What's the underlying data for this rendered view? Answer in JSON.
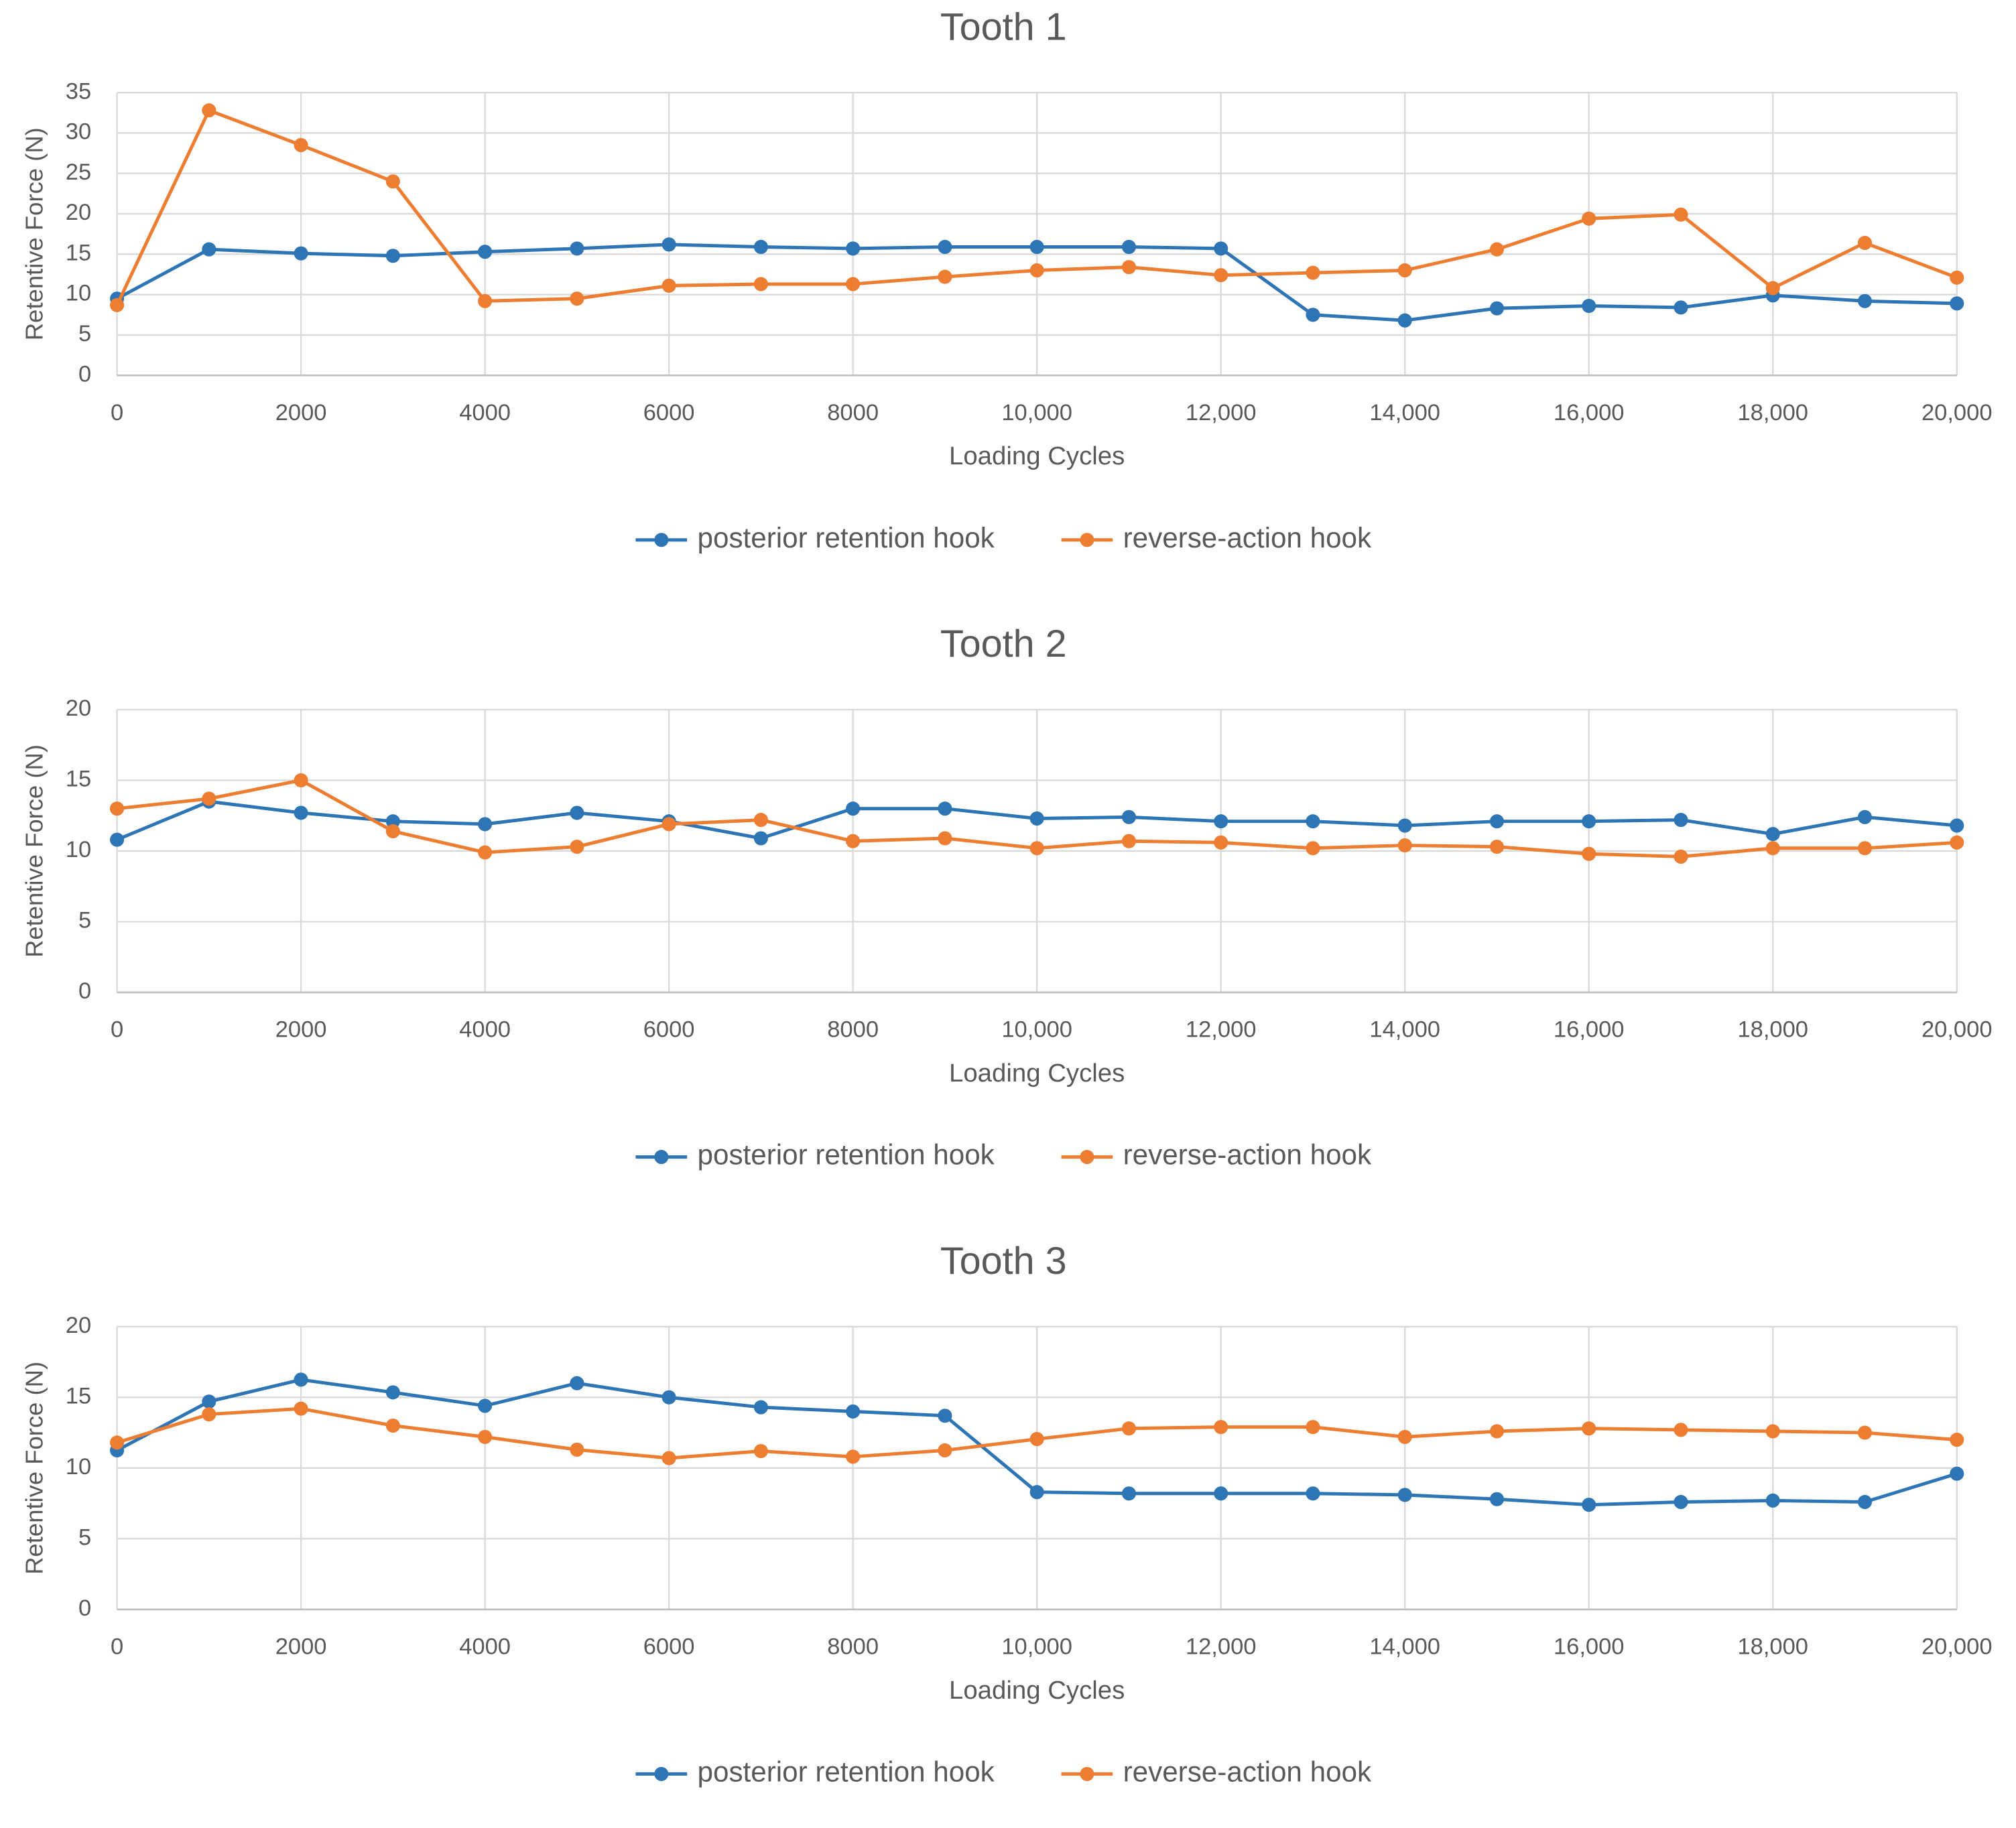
{
  "chart_data": [
    {
      "type": "line",
      "title": "Tooth 1",
      "x_label": "Loading Cycles",
      "y_label": "Retentive Force (N)",
      "x": [
        0,
        1000,
        2000,
        3000,
        4000,
        5000,
        6000,
        7000,
        8000,
        9000,
        10000,
        11000,
        12000,
        13000,
        14000,
        15000,
        16000,
        17000,
        18000,
        19000,
        20000
      ],
      "series": [
        {
          "name": "posterior retention hook",
          "color": "#2e75b6",
          "values": [
            9.5,
            15.6,
            15.1,
            14.8,
            15.3,
            15.7,
            16.2,
            15.9,
            15.7,
            15.9,
            15.9,
            15.9,
            15.7,
            7.5,
            6.8,
            8.3,
            8.6,
            8.4,
            9.9,
            9.2,
            8.9
          ]
        },
        {
          "name": "reverse-action hook",
          "color": "#ed7d31",
          "values": [
            8.7,
            32.8,
            28.5,
            24.0,
            9.2,
            9.5,
            11.1,
            11.3,
            11.3,
            12.2,
            13.0,
            13.4,
            12.4,
            12.7,
            13.0,
            15.6,
            19.4,
            19.9,
            10.8,
            16.4,
            12.1
          ]
        }
      ],
      "xlim": [
        0,
        20000
      ],
      "xticks": [
        0,
        2000,
        4000,
        6000,
        8000,
        {
          "value": 10000,
          "label": "10,000"
        },
        {
          "value": 12000,
          "label": "12,000"
        },
        {
          "value": 14000,
          "label": "14,000"
        },
        {
          "value": 16000,
          "label": "16,000"
        },
        {
          "value": 18000,
          "label": "18,000"
        },
        {
          "value": 20000,
          "label": "20,000"
        }
      ],
      "ylim": [
        0,
        35
      ],
      "yticks": [
        0,
        5,
        10,
        15,
        20,
        25,
        30,
        35
      ],
      "grid": true,
      "legend": "bottom"
    },
    {
      "type": "line",
      "title": "Tooth 2",
      "x_label": "Loading Cycles",
      "y_label": "Retentive Force (N)",
      "x": [
        0,
        1000,
        2000,
        3000,
        4000,
        5000,
        6000,
        7000,
        8000,
        9000,
        10000,
        11000,
        12000,
        13000,
        14000,
        15000,
        16000,
        17000,
        18000,
        19000,
        20000
      ],
      "series": [
        {
          "name": "posterior retention hook",
          "color": "#2e75b6",
          "values": [
            10.8,
            13.5,
            12.7,
            12.1,
            11.9,
            12.7,
            12.1,
            10.9,
            13.0,
            13.0,
            12.3,
            12.4,
            12.1,
            12.1,
            11.8,
            12.1,
            12.1,
            12.2,
            11.2,
            12.4,
            11.8
          ]
        },
        {
          "name": "reverse-action hook",
          "color": "#ed7d31",
          "values": [
            13.0,
            13.7,
            15.0,
            11.4,
            9.9,
            10.3,
            11.9,
            12.2,
            10.7,
            10.9,
            10.2,
            10.7,
            10.6,
            10.2,
            10.4,
            10.3,
            9.8,
            9.6,
            10.2,
            10.2,
            10.6
          ]
        }
      ],
      "xlim": [
        0,
        20000
      ],
      "xticks": [
        0,
        2000,
        4000,
        6000,
        8000,
        {
          "value": 10000,
          "label": "10,000"
        },
        {
          "value": 12000,
          "label": "12,000"
        },
        {
          "value": 14000,
          "label": "14,000"
        },
        {
          "value": 16000,
          "label": "16,000"
        },
        {
          "value": 18000,
          "label": "18,000"
        },
        {
          "value": 20000,
          "label": "20,000"
        }
      ],
      "ylim": [
        0,
        20
      ],
      "yticks": [
        0,
        5,
        10,
        15,
        20
      ],
      "grid": true,
      "legend": "bottom"
    },
    {
      "type": "line",
      "title": "Tooth 3",
      "x_label": "Loading Cycles",
      "y_label": "Retentive Force (N)",
      "x": [
        0,
        1000,
        2000,
        3000,
        4000,
        5000,
        6000,
        7000,
        8000,
        9000,
        10000,
        11000,
        12000,
        13000,
        14000,
        15000,
        16000,
        17000,
        18000,
        19000,
        20000
      ],
      "series": [
        {
          "name": "posterior retention hook",
          "color": "#2e75b6",
          "values": [
            11.25,
            14.7,
            16.25,
            15.35,
            14.4,
            16.0,
            15.0,
            14.3,
            14.0,
            13.7,
            8.3,
            8.2,
            8.2,
            8.2,
            8.1,
            7.8,
            7.4,
            7.6,
            7.7,
            7.6,
            9.6
          ]
        },
        {
          "name": "reverse-action hook",
          "color": "#ed7d31",
          "values": [
            11.8,
            13.8,
            14.2,
            13.0,
            12.2,
            11.3,
            10.7,
            11.2,
            10.8,
            11.25,
            12.05,
            12.8,
            12.9,
            12.9,
            12.2,
            12.6,
            12.8,
            12.7,
            12.6,
            12.5,
            12.0
          ]
        }
      ],
      "xlim": [
        0,
        20000
      ],
      "xticks": [
        0,
        2000,
        4000,
        6000,
        8000,
        {
          "value": 10000,
          "label": "10,000"
        },
        {
          "value": 12000,
          "label": "12,000"
        },
        {
          "value": 14000,
          "label": "14,000"
        },
        {
          "value": 16000,
          "label": "16,000"
        },
        {
          "value": 18000,
          "label": "18,000"
        },
        {
          "value": 20000,
          "label": "20,000"
        }
      ],
      "ylim": [
        0,
        20
      ],
      "yticks": [
        0,
        5,
        10,
        15,
        20
      ],
      "grid": true,
      "legend": "bottom"
    }
  ]
}
